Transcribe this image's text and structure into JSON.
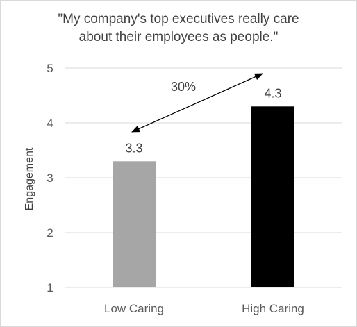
{
  "chart_data": {
    "type": "bar",
    "title_lines": [
      "\"My company's top executives really care",
      "about their employees as people.\""
    ],
    "categories": [
      "Low Caring",
      "High Caring"
    ],
    "values": [
      3.3,
      4.3
    ],
    "data_labels": [
      "3.3",
      "4.3"
    ],
    "bar_colors": [
      "#a6a6a6",
      "#000000"
    ],
    "xlabel": "",
    "ylabel": "Engagement",
    "ylim": [
      1,
      5
    ],
    "yticks": [
      "1",
      "2",
      "3",
      "4",
      "5"
    ],
    "grid": true,
    "annotation": {
      "text": "30%",
      "arrow": "double-headed, from the Low Caring bar top to the High Caring bar top"
    }
  }
}
